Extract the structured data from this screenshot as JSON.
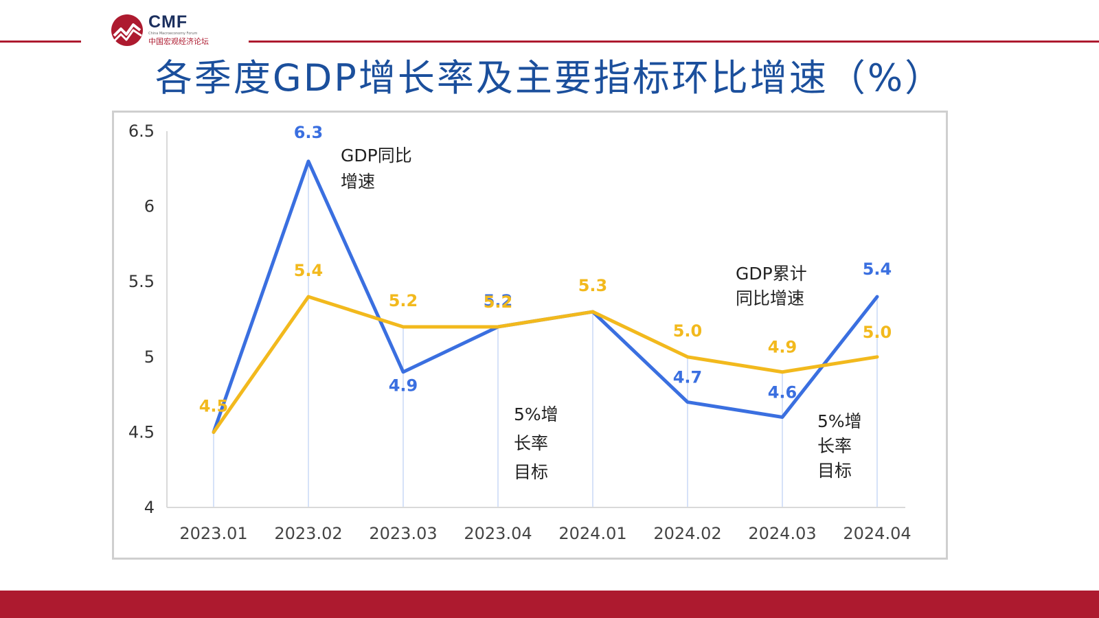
{
  "header": {
    "logo_text": "CMF",
    "logo_subtitle_en": "China Macroeconomy Forum",
    "logo_subtitle_cn": "中国宏观经济论坛",
    "title": "各季度GDP增长率及主要指标环比增速（%）"
  },
  "colors": {
    "brand_red": "#ad1a2f",
    "title_blue": "#1b4f9c",
    "series_blue": "#3a6fe0",
    "series_yellow": "#f2b91d"
  },
  "chart_data": {
    "type": "line",
    "title": "",
    "xlabel": "",
    "ylabel": "",
    "categories": [
      "2023.01",
      "2023.02",
      "2023.03",
      "2023.04",
      "2024.01",
      "2024.02",
      "2024.03",
      "2024.04"
    ],
    "ylim": [
      4,
      6.5
    ],
    "yticks": [
      "4",
      "4.5",
      "5",
      "5.5",
      "6",
      "6.5"
    ],
    "grid": false,
    "legend": "none",
    "series": [
      {
        "name": "GDP同比增速",
        "color": "#3a6fe0",
        "values": [
          4.5,
          6.3,
          4.9,
          5.2,
          5.3,
          4.7,
          4.6,
          5.4
        ],
        "labels": [
          "",
          "6.3",
          "4.9",
          "5.2",
          "",
          "4.7",
          "4.6",
          "5.4"
        ]
      },
      {
        "name": "GDP累计同比增速",
        "color": "#f2b91d",
        "values": [
          4.5,
          5.4,
          5.2,
          5.2,
          5.3,
          5.0,
          4.9,
          5.0
        ],
        "labels": [
          "4.5",
          "5.4",
          "5.2",
          "5.2",
          "5.3",
          "5.0",
          "4.9",
          "5.0"
        ]
      }
    ],
    "annotations": [
      {
        "id": "gdp-yoy",
        "lines": [
          "GDP同比",
          "增速"
        ]
      },
      {
        "id": "gdp-cumulative",
        "lines": [
          "GDP累计",
          "同比增速"
        ]
      },
      {
        "id": "target-1",
        "lines": [
          "5%增",
          "长率",
          "目标"
        ]
      },
      {
        "id": "target-2",
        "lines": [
          "5%增",
          "长率",
          "目标"
        ]
      }
    ]
  }
}
